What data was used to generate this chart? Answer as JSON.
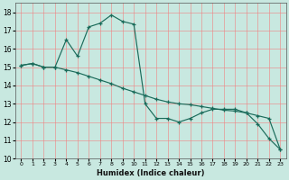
{
  "xlabel": "Humidex (Indice chaleur)",
  "xlim": [
    -0.5,
    23.5
  ],
  "ylim": [
    10,
    18.5
  ],
  "xticks": [
    0,
    1,
    2,
    3,
    4,
    5,
    6,
    7,
    8,
    9,
    10,
    11,
    12,
    13,
    14,
    15,
    16,
    17,
    18,
    19,
    20,
    21,
    22,
    23
  ],
  "yticks": [
    10,
    11,
    12,
    13,
    14,
    15,
    16,
    17,
    18
  ],
  "bg_color": "#c8e8e0",
  "line_color": "#1a6b5a",
  "series1_x": [
    0,
    1,
    2,
    3,
    4,
    5,
    6,
    7,
    8,
    9,
    10,
    11,
    12,
    13,
    14,
    15,
    16,
    17,
    18,
    19,
    20,
    21,
    22,
    23
  ],
  "series1_y": [
    15.1,
    15.2,
    15.0,
    15.0,
    16.5,
    15.6,
    17.2,
    17.4,
    17.85,
    17.5,
    17.35,
    13.0,
    12.2,
    12.2,
    12.0,
    12.2,
    12.5,
    12.7,
    12.7,
    12.7,
    12.5,
    11.9,
    11.1,
    10.5
  ],
  "series2_x": [
    0,
    1,
    2,
    3,
    4,
    5,
    6,
    7,
    8,
    9,
    10,
    11,
    12,
    13,
    14,
    15,
    16,
    17,
    18,
    19,
    20,
    21,
    22,
    23
  ],
  "series2_y": [
    15.1,
    15.2,
    15.0,
    15.0,
    14.85,
    14.7,
    14.5,
    14.3,
    14.1,
    13.85,
    13.65,
    13.45,
    13.25,
    13.1,
    13.0,
    12.95,
    12.85,
    12.75,
    12.65,
    12.6,
    12.5,
    12.35,
    12.2,
    10.5
  ]
}
